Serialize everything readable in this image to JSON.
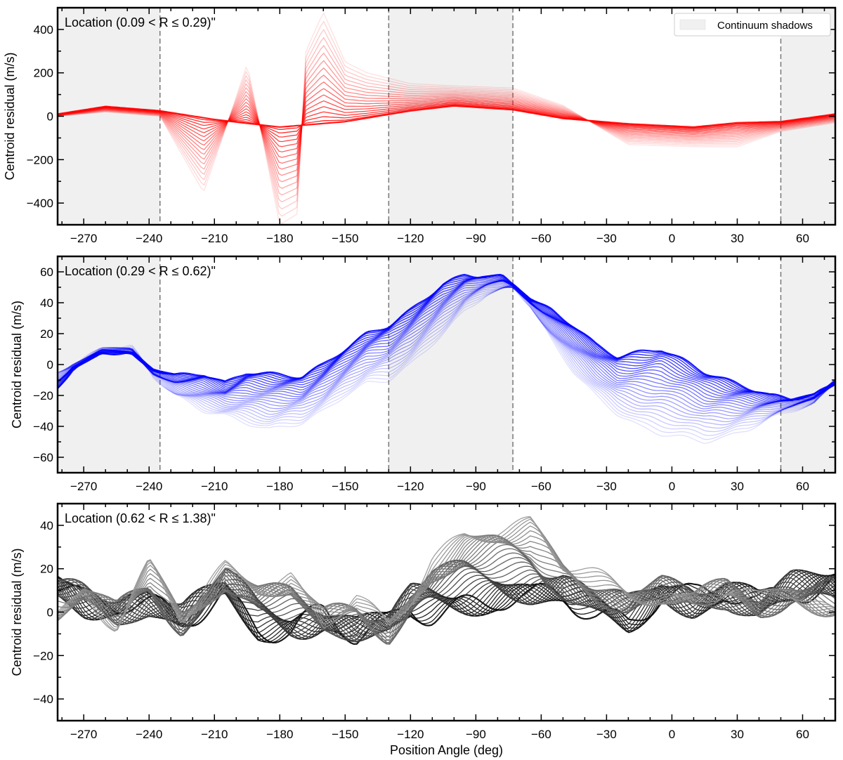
{
  "chart_data": [
    {
      "type": "line",
      "location_label": "Location (0.09 < R  ≤  0.29)\"",
      "ylabel": "Centroid residual (m/s)",
      "xlabel": "",
      "xlim": [
        -282,
        75
      ],
      "ylim": [
        -500,
        500
      ],
      "xticks": [
        -270,
        -240,
        -210,
        -180,
        -150,
        -120,
        -90,
        -60,
        -30,
        0,
        30,
        60
      ],
      "xtick_labels": [
        "−270",
        "−240",
        "−210",
        "−180",
        "−150",
        "−120",
        "−90",
        "−60",
        "−30",
        "0",
        "30",
        "60"
      ],
      "yticks": [
        -400,
        -200,
        0,
        200,
        400
      ],
      "ytick_labels": [
        "−400",
        "−200",
        "0",
        "200",
        "400"
      ],
      "color": "#ff0000",
      "shadow_regions": [
        [
          -282,
          -235
        ],
        [
          -130,
          -73
        ],
        [
          50,
          75
        ]
      ],
      "dashed_lines": [
        -235,
        -130,
        -73,
        50
      ],
      "legend": "Continuum shadows",
      "series_count": 18,
      "base_curve": {
        "x": [
          -282,
          -260,
          -235,
          -210,
          -180,
          -150,
          -120,
          -100,
          -73,
          -50,
          -20,
          10,
          30,
          50,
          75
        ],
        "y": [
          10,
          45,
          25,
          -15,
          -50,
          -25,
          25,
          48,
          30,
          -10,
          -35,
          -50,
          -30,
          -25,
          10
        ]
      },
      "outer_curve": {
        "x": [
          -282,
          -260,
          -235,
          -215,
          -205,
          -195,
          -188,
          -180,
          -172,
          -168,
          -160,
          -150,
          -140,
          -120,
          -100,
          -73,
          -50,
          -20,
          10,
          30,
          50,
          75
        ],
        "y": [
          0,
          20,
          0,
          -350,
          -60,
          240,
          -100,
          -500,
          -450,
          300,
          480,
          250,
          200,
          150,
          140,
          130,
          50,
          -130,
          -140,
          -140,
          -70,
          -30
        ]
      }
    },
    {
      "type": "line",
      "location_label": "Location (0.29 < R  ≤  0.62)\"",
      "ylabel": "Centroid residual (m/s)",
      "xlabel": "",
      "xlim": [
        -282,
        75
      ],
      "ylim": [
        -70,
        70
      ],
      "xticks": [
        -270,
        -240,
        -210,
        -180,
        -150,
        -120,
        -90,
        -60,
        -30,
        0,
        30,
        60
      ],
      "xtick_labels": [
        "−270",
        "−240",
        "−210",
        "−180",
        "−150",
        "−120",
        "−90",
        "−60",
        "−30",
        "0",
        "30",
        "60"
      ],
      "yticks": [
        -60,
        -40,
        -20,
        0,
        20,
        40,
        60
      ],
      "ytick_labels": [
        "−60",
        "−40",
        "−20",
        "0",
        "20",
        "40",
        "60"
      ],
      "color": "#0000ff",
      "shadow_regions": [
        [
          -282,
          -235
        ],
        [
          -130,
          -73
        ],
        [
          50,
          75
        ]
      ],
      "dashed_lines": [
        -235,
        -130,
        -73,
        50
      ],
      "series_count": 26,
      "base_curve": {
        "x": [
          -282,
          -275,
          -262,
          -248,
          -238,
          -228,
          -215,
          -205,
          -195,
          -185,
          -170,
          -160,
          -150,
          -140,
          -130,
          -120,
          -105,
          -95,
          -85,
          -78,
          -73,
          -65,
          -55,
          -45,
          -35,
          -25,
          -15,
          -5,
          5,
          15,
          25,
          35,
          45,
          55,
          65,
          75
        ],
        "y": [
          -15,
          -3,
          8,
          7,
          -3,
          -7,
          -6,
          -12,
          -5,
          -6,
          -8,
          0,
          10,
          20,
          25,
          35,
          52,
          58,
          57,
          57,
          52,
          42,
          35,
          25,
          13,
          5,
          8,
          10,
          3,
          -5,
          -10,
          -15,
          -20,
          -22,
          -20,
          -12
        ]
      },
      "outer_curve": {
        "x": [
          -282,
          -275,
          -262,
          -248,
          -238,
          -228,
          -215,
          -205,
          -195,
          -185,
          -170,
          -160,
          -150,
          -140,
          -130,
          -120,
          -105,
          -95,
          -85,
          -78,
          -73,
          -65,
          -55,
          -45,
          -35,
          -25,
          -15,
          -5,
          5,
          15,
          25,
          35,
          45,
          55,
          65,
          75
        ],
        "y": [
          -5,
          0,
          10,
          12,
          -8,
          -20,
          -30,
          -33,
          -38,
          -42,
          -38,
          -30,
          -20,
          -12,
          -10,
          0,
          20,
          35,
          45,
          48,
          50,
          38,
          15,
          -5,
          -20,
          -32,
          -40,
          -45,
          -47,
          -50,
          -47,
          -42,
          -35,
          -30,
          -25,
          -10
        ]
      }
    },
    {
      "type": "line",
      "location_label": "Location (0.62 < R  ≤  1.38)\"",
      "ylabel": "Centroid residual (m/s)",
      "xlabel": "Position Angle (deg)",
      "xlim": [
        -282,
        75
      ],
      "ylim": [
        -50,
        50
      ],
      "xticks": [
        -270,
        -240,
        -210,
        -180,
        -150,
        -120,
        -90,
        -60,
        -30,
        0,
        30,
        60
      ],
      "xtick_labels": [
        "−270",
        "−240",
        "−210",
        "−180",
        "−150",
        "−120",
        "−90",
        "−60",
        "−30",
        "0",
        "30",
        "60"
      ],
      "yticks": [
        -40,
        -20,
        0,
        20,
        40
      ],
      "ytick_labels": [
        "−40",
        "−20",
        "0",
        "20",
        "40"
      ],
      "color": "#000000",
      "shadow_regions": [],
      "dashed_lines": [],
      "series_count": 40,
      "base_curve": {
        "x": [
          -282,
          -270,
          -255,
          -240,
          -225,
          -205,
          -190,
          -175,
          -160,
          -145,
          -130,
          -120,
          -110,
          -95,
          -80,
          -65,
          -50,
          -35,
          -20,
          -5,
          10,
          25,
          40,
          55,
          75
        ],
        "y": [
          15,
          5,
          3,
          0,
          -3,
          10,
          -5,
          -10,
          -3,
          -12,
          -5,
          5,
          2,
          3,
          5,
          3,
          8,
          0,
          -3,
          10,
          5,
          8,
          2,
          12,
          15
        ]
      },
      "outer_curve": {
        "x": [
          -282,
          -270,
          -255,
          -240,
          -225,
          -205,
          -190,
          -175,
          -160,
          -145,
          -130,
          -120,
          -110,
          -95,
          -80,
          -65,
          -50,
          -35,
          -20,
          -5,
          10,
          25,
          40,
          55,
          75
        ],
        "y": [
          0,
          10,
          -5,
          20,
          -5,
          20,
          15,
          18,
          -5,
          5,
          -10,
          5,
          25,
          38,
          40,
          40,
          20,
          15,
          10,
          10,
          5,
          10,
          3,
          8,
          0
        ]
      }
    }
  ]
}
